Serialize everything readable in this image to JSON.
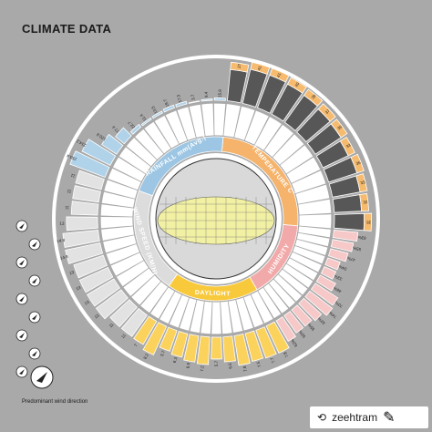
{
  "header": {
    "title": "CLIMATE DATA"
  },
  "sections": {
    "temperature": "TEMPERATURE C°",
    "rainfall": "RAINFALL mm(Avg.)",
    "humidity": "HUMIDITY",
    "daylight": "DAYLIGHT",
    "wind": "WIND SPEED (KM/H)"
  },
  "legend": {
    "wind_caption": "Predominant wind direction"
  },
  "credit": {
    "name": "zeehtram",
    "repost_icon": "repost-icon",
    "brush_icon": "brush-icon"
  },
  "colors": {
    "temperature_high": "#f6bb6e",
    "temperature_low": "#575757",
    "rainfall": "#b0d3ea",
    "humidity": "#f7c8c8",
    "daylight": "#fbd25c",
    "wind": "#e2e2e2",
    "center_yellow": "#f2f1a3",
    "background": "#a9a9a9"
  },
  "chart_data": {
    "type": "radial-bar",
    "title": "CLIMATE DATA",
    "series": [
      {
        "name": "TEMPERATURE C°",
        "values_visible": [
          37,
          41,
          41,
          40,
          39,
          37,
          36,
          33,
          35,
          33,
          32,
          35
        ]
      },
      {
        "name": "RAINFALL mm(Avg.)",
        "values_visible": [
          253.4,
          214.2,
          120.9,
          77.4,
          22.7,
          11.4,
          13.5,
          19.7,
          17.3,
          3.7,
          9.4,
          15.8
        ]
      },
      {
        "name": "HUMIDITY",
        "values_visible": [
          "63%",
          "55%",
          "47%",
          "34%",
          "33%",
          "46%",
          "70%",
          "74%",
          "62%",
          "55%",
          "55%",
          "62%"
        ]
      },
      {
        "name": "DAYLIGHT",
        "values_visible": [
          7.8,
          7.7,
          7.5,
          7.8,
          6.5,
          5.7,
          7.2,
          6.9,
          6.3,
          5.7,
          8.2,
          7
        ]
      },
      {
        "name": "WIND SPEED (KM/H)",
        "values_visible": [
          11,
          11,
          13,
          13,
          13,
          13,
          14.8,
          14.8,
          13,
          11,
          11,
          11
        ]
      }
    ]
  }
}
